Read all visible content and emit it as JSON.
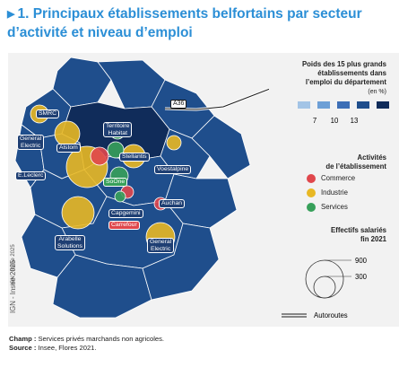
{
  "title": {
    "line1": "1. Principaux établissements belfortains par secteur",
    "line2": "d’activité et niveau d’emploi"
  },
  "legend": {
    "title_lines": [
      "Poids des 15 plus grands",
      "établissements dans",
      "l’emploi du département"
    ],
    "unit": "(en %)",
    "class_colors": [
      "#a3c4e6",
      "#6d9fd6",
      "#3d6fb6",
      "#1f4e8c",
      "#102c5a"
    ],
    "class_breaks": [
      "7",
      "10",
      "13"
    ],
    "activities_title_lines": [
      "Activités",
      "de l’établissement"
    ],
    "activities": [
      {
        "label": "Commerce",
        "color": "#e0474c"
      },
      {
        "label": "Industrie",
        "color": "#e8b824"
      },
      {
        "label": "Services",
        "color": "#37a05a"
      }
    ],
    "size_title_lines": [
      "Effectifs salariés",
      "fin 2021"
    ],
    "size_values": [
      "900",
      "300"
    ],
    "road_label": "Autoroutes"
  },
  "map": {
    "credit": "IGN - Insee 2025",
    "motorway_label": "A36",
    "labels": {
      "smrc": "SMRC",
      "general_electric_1": "General\nElectric",
      "territoire_habitat": "Territoire\nHabitat",
      "alstom": "Alstom",
      "stellantis": "Stellantis",
      "voestalpine": "Voestalpine",
      "leclerc": "E.Leclerc",
      "soone": "SoOne",
      "auchan": "Auchan",
      "capgemini": "Capgemini",
      "carrefour": "Carrefour",
      "arabelle": "Arabelle\nSolutions",
      "general_electric_2": "General\nElectric"
    }
  },
  "footer": {
    "champ_label": "Champ :",
    "champ_text": " Services privés marchands non agricoles.",
    "source_label": "Source :",
    "source_text": " Insee, Flores 2021."
  }
}
